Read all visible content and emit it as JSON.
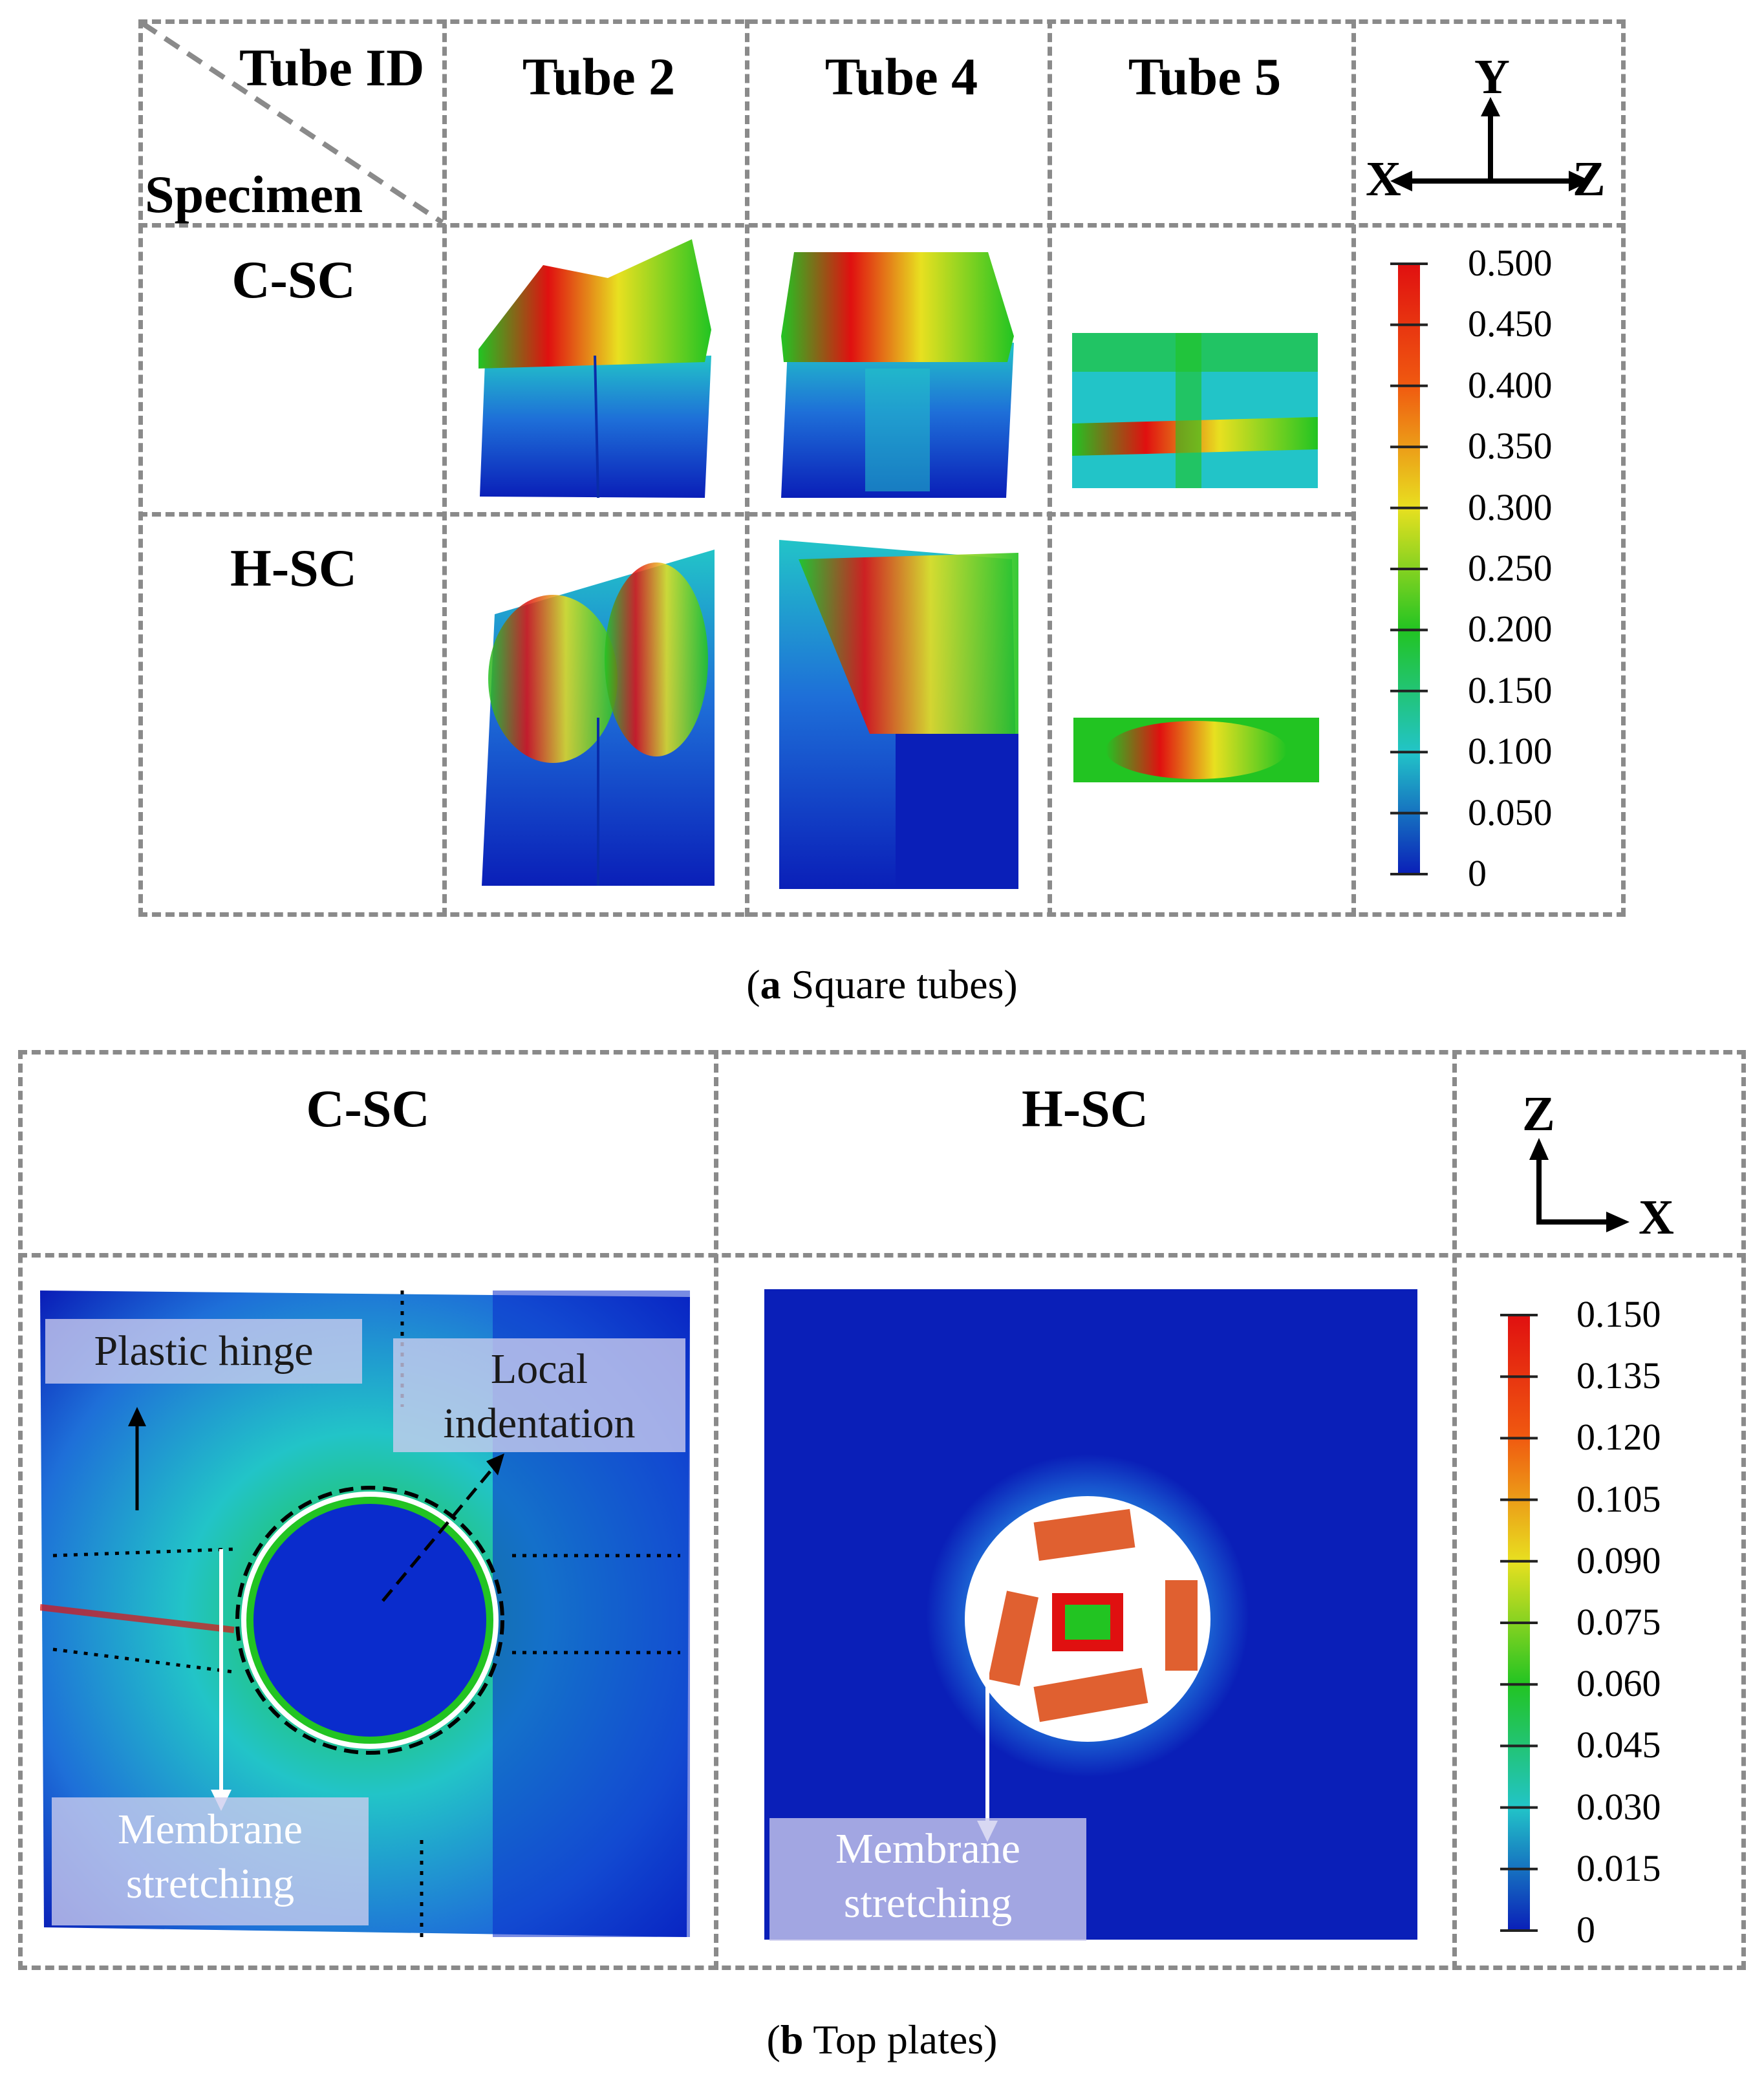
{
  "panel_a": {
    "corner_top": "Tube ID",
    "corner_bottom": "Specimen",
    "columns": [
      "Tube 2",
      "Tube 4",
      "Tube 5"
    ],
    "rows": [
      "C-SC",
      "H-SC"
    ],
    "axes": {
      "up": "Y",
      "left": "X",
      "right": "Z"
    },
    "colorbar_ticks": [
      "0.500",
      "0.450",
      "0.400",
      "0.350",
      "0.300",
      "0.250",
      "0.200",
      "0.150",
      "0.100",
      "0.050",
      "0"
    ],
    "caption_letter": "a",
    "caption_text": " Square tubes"
  },
  "panel_b": {
    "columns": [
      "C-SC",
      "H-SC"
    ],
    "axes": {
      "up": "Z",
      "right": "X"
    },
    "colorbar_ticks": [
      "0.150",
      "0.135",
      "0.120",
      "0.105",
      "0.090",
      "0.075",
      "0.060",
      "0.045",
      "0.030",
      "0.015",
      "0"
    ],
    "annotations": {
      "plastic_hinge": "Plastic hinge",
      "local_indentation": "Local indentation",
      "membrane_stretching_csc": "Membrane stretching",
      "membrane_stretching_hsc": "Membrane stretching"
    },
    "caption_letter": "b",
    "caption_text": " Top plates"
  },
  "colors": {
    "dashed_border": "#8a8a8a",
    "contour_blue": "#0a1fb8",
    "contour_cyan": "#22c4c8",
    "contour_green": "#22c422",
    "contour_yellow": "#e8e020",
    "contour_red": "#e01010",
    "annotation_box": "#cdcdee"
  }
}
